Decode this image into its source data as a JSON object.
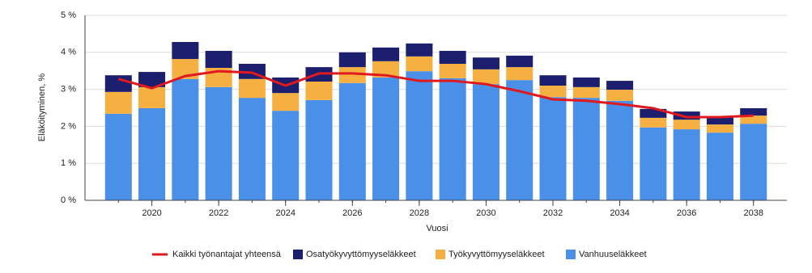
{
  "chart_data": {
    "type": "bar",
    "stacked": true,
    "x_label": "Vuosi",
    "y_label": "Eläköityminen, %",
    "x": [
      2019,
      2020,
      2021,
      2022,
      2023,
      2024,
      2025,
      2026,
      2027,
      2028,
      2029,
      2030,
      2031,
      2032,
      2033,
      2034,
      2035,
      2036,
      2037,
      2038
    ],
    "xlim": [
      2018,
      2039
    ],
    "xticks": [
      2020,
      2022,
      2024,
      2026,
      2028,
      2030,
      2032,
      2034,
      2036,
      2038
    ],
    "ylim": [
      0,
      5
    ],
    "yticks": [
      {
        "value": 0,
        "label": "0 %"
      },
      {
        "value": 1,
        "label": "1 %"
      },
      {
        "value": 2,
        "label": "2 %"
      },
      {
        "value": 3,
        "label": "3 %"
      },
      {
        "value": 4,
        "label": "4 %"
      },
      {
        "value": 5,
        "label": "5 %"
      }
    ],
    "grid": true,
    "legend": "bottom",
    "series": [
      {
        "name": "Kaikki työnantajat yhteensä",
        "type": "line",
        "color": "#e0191e",
        "values": [
          3.28,
          3.03,
          3.36,
          3.49,
          3.45,
          3.1,
          3.43,
          3.43,
          3.38,
          3.23,
          3.23,
          3.14,
          2.95,
          2.73,
          2.69,
          2.6,
          2.49,
          2.25,
          2.25,
          2.29
        ]
      },
      {
        "name": "Osatyökyvyttömyyseläkkeet",
        "type": "bar",
        "color": "#1b1f6e",
        "values": [
          0.45,
          0.41,
          0.46,
          0.46,
          0.41,
          0.42,
          0.39,
          0.4,
          0.37,
          0.35,
          0.35,
          0.32,
          0.31,
          0.28,
          0.26,
          0.24,
          0.24,
          0.22,
          0.22,
          0.2
        ]
      },
      {
        "name": "Työkyvyttömyyseläkkeet",
        "type": "bar",
        "color": "#f6b042",
        "values": [
          0.59,
          0.57,
          0.54,
          0.52,
          0.51,
          0.48,
          0.5,
          0.43,
          0.44,
          0.4,
          0.39,
          0.4,
          0.35,
          0.31,
          0.29,
          0.3,
          0.26,
          0.26,
          0.22,
          0.22
        ]
      },
      {
        "name": "Vanhuuseläkkeet",
        "type": "bar",
        "color": "#4a8fe8",
        "values": [
          2.34,
          2.49,
          3.28,
          3.06,
          2.77,
          2.42,
          2.71,
          3.17,
          3.32,
          3.49,
          3.3,
          3.14,
          3.25,
          2.79,
          2.77,
          2.69,
          1.97,
          1.92,
          1.83,
          2.07
        ]
      }
    ]
  }
}
